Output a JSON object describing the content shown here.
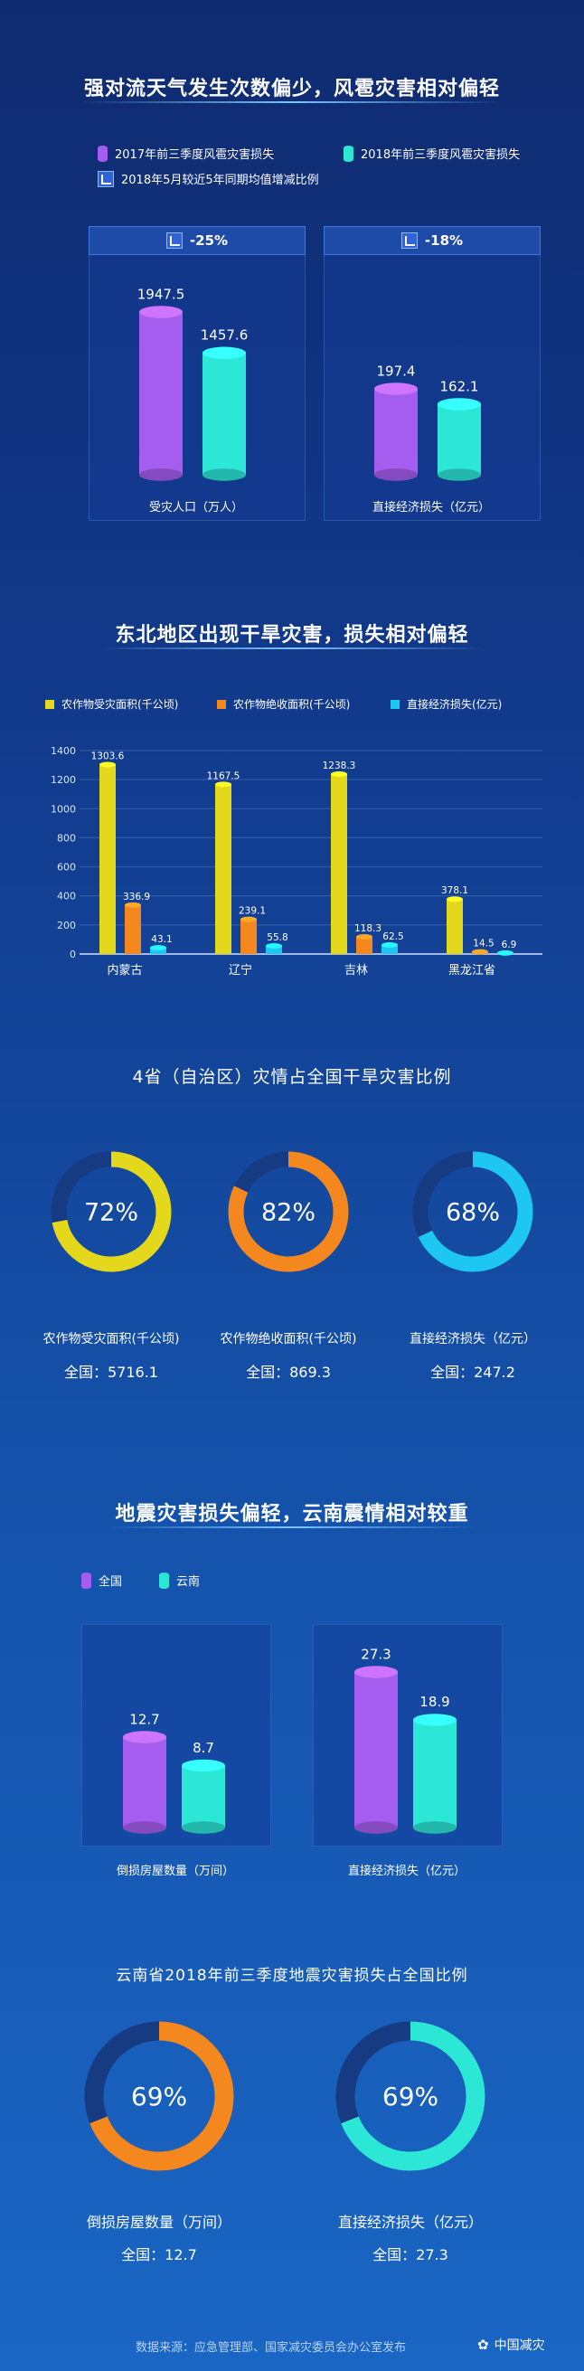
{
  "section1": {
    "title": "强对流天气发生次数偏少，风雹灾害相对偏轻",
    "legend": [
      {
        "label": "2017年前三季度风雹灾害损失",
        "color": "#a55df0"
      },
      {
        "label": "2018年前三季度风雹灾害损失",
        "color": "#2ce6d6"
      },
      {
        "label": "2018年5月较近5年同期均值增减比例",
        "color": "#2f63d6"
      }
    ],
    "charts": [
      {
        "badge": "-25%",
        "label": "受灾人口（万人）",
        "values": [
          1947.5,
          1457.6
        ],
        "labels": [
          "1947.5",
          "1457.6"
        ]
      },
      {
        "badge": "-18%",
        "label": "直接经济损失（亿元）",
        "values": [
          197.4,
          162.1
        ],
        "labels": [
          "197.4",
          "162.1"
        ]
      }
    ]
  },
  "section2": {
    "title": "东北地区出现干旱灾害，损失相对偏轻",
    "legend": [
      {
        "label": "农作物受灾面积(千公顷)",
        "color": "#e4d81c"
      },
      {
        "label": "农作物绝收面积(千公顷)",
        "color": "#f5871f"
      },
      {
        "label": "直接经济损失(亿元)",
        "color": "#1ec6f2"
      }
    ]
  },
  "section3": {
    "title": "4省（自治区）灾情占全国干旱灾害比例",
    "rings": [
      {
        "pct": 72,
        "text": "72%",
        "caption": "农作物受灾面积(千公顷)",
        "total": "全国：5716.1",
        "color": "#e4d81c"
      },
      {
        "pct": 82,
        "text": "82%",
        "caption": "农作物绝收面积(千公顷)",
        "total": "全国：869.3",
        "color": "#f5871f"
      },
      {
        "pct": 68,
        "text": "68%",
        "caption": "直接经济损失（亿元）",
        "total": "全国：247.2",
        "color": "#1ec6f2"
      }
    ]
  },
  "section4": {
    "title": "地震灾害损失偏轻，云南震情相对较重",
    "legend": [
      {
        "label": "全国",
        "color": "#a55df0"
      },
      {
        "label": "云南",
        "color": "#2ce6d6"
      }
    ],
    "charts": [
      {
        "label": "倒损房屋数量（万间）",
        "values": [
          12.7,
          8.7
        ],
        "labels": [
          "12.7",
          "8.7"
        ]
      },
      {
        "label": "直接经济损失（亿元）",
        "values": [
          27.3,
          18.9
        ],
        "labels": [
          "27.3",
          "18.9"
        ]
      }
    ]
  },
  "section5": {
    "title": "云南省2018年前三季度地震灾害损失占全国比例",
    "rings": [
      {
        "pct": 69,
        "text": "69%",
        "caption": "倒损房屋数量（万间）",
        "total": "全国：12.7",
        "color": "#f5871f"
      },
      {
        "pct": 69,
        "text": "69%",
        "caption": "直接经济损失（亿元）",
        "total": "全国：27.3",
        "color": "#2ce6d6"
      }
    ]
  },
  "footer": {
    "source": "数据来源：应急管理部、国家减灾委员会办公室发布",
    "brand": "中国减灾"
  },
  "chart_data": [
    {
      "type": "bar",
      "title": "强对流天气发生次数偏少，风雹灾害相对偏轻",
      "categories": [
        "受灾人口（万人）",
        "直接经济损失（亿元）"
      ],
      "series": [
        {
          "name": "2017年前三季度风雹灾害损失",
          "values": [
            1947.5,
            197.4
          ]
        },
        {
          "name": "2018年前三季度风雹灾害损失",
          "values": [
            1457.6,
            162.1
          ]
        }
      ],
      "annotations": [
        "-25%",
        "-18%"
      ]
    },
    {
      "type": "bar",
      "title": "东北地区出现干旱灾害，损失相对偏轻",
      "categories": [
        "内蒙古",
        "辽宁",
        "吉林",
        "黑龙江省"
      ],
      "yticks": [
        0,
        200,
        400,
        600,
        800,
        1000,
        1200,
        1400
      ],
      "ylim": [
        0,
        1400
      ],
      "series": [
        {
          "name": "农作物受灾面积(千公顷)",
          "values": [
            1303.6,
            1167.5,
            1238.3,
            378.1
          ]
        },
        {
          "name": "农作物绝收面积(千公顷)",
          "values": [
            336.9,
            239.1,
            118.3,
            14.5
          ]
        },
        {
          "name": "直接经济损失(亿元)",
          "values": [
            43.1,
            55.8,
            62.5,
            6.9
          ]
        }
      ]
    },
    {
      "type": "pie",
      "title": "4省（自治区）灾情占全国干旱灾害比例",
      "categories": [
        "农作物受灾面积(千公顷)",
        "农作物绝收面积(千公顷)",
        "直接经济损失（亿元）"
      ],
      "values": [
        72,
        82,
        68
      ]
    },
    {
      "type": "bar",
      "title": "地震灾害损失偏轻，云南震情相对较重",
      "categories": [
        "倒损房屋数量（万间）",
        "直接经济损失（亿元）"
      ],
      "series": [
        {
          "name": "全国",
          "values": [
            12.7,
            27.3
          ]
        },
        {
          "name": "云南",
          "values": [
            8.7,
            18.9
          ]
        }
      ]
    },
    {
      "type": "pie",
      "title": "云南省2018年前三季度地震灾害损失占全国比例",
      "categories": [
        "倒损房屋数量（万间）",
        "直接经济损失（亿元）"
      ],
      "values": [
        69,
        69
      ]
    }
  ]
}
